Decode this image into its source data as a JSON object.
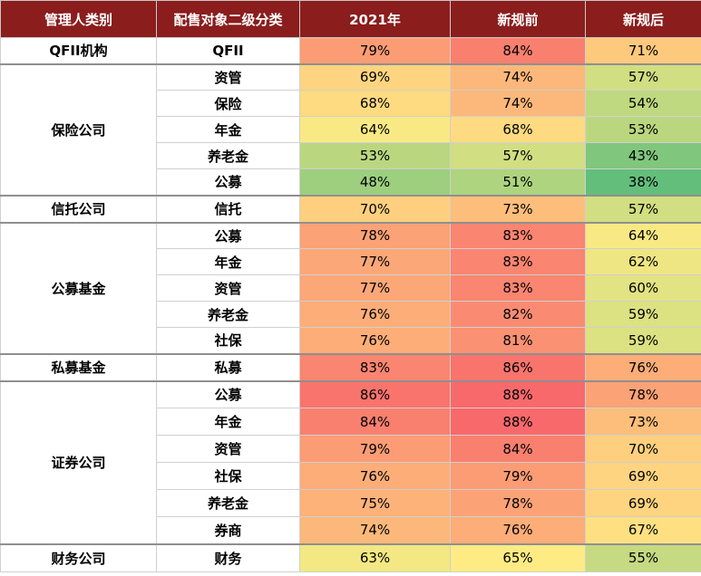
{
  "header": {
    "col1": "管理人类别",
    "col2": "配售对象二级分类",
    "col3": "2021年",
    "col4": "新规前",
    "col5": "新规后"
  },
  "groups": [
    {
      "category": "QFII机构",
      "rows": [
        {
          "sub": "QFII",
          "v2021": "79%",
          "before": "84%",
          "after": "71%"
        }
      ]
    },
    {
      "category": "保险公司",
      "rows": [
        {
          "sub": "资管",
          "v2021": "69%",
          "before": "74%",
          "after": "57%"
        },
        {
          "sub": "保险",
          "v2021": "68%",
          "before": "74%",
          "after": "54%"
        },
        {
          "sub": "年金",
          "v2021": "64%",
          "before": "68%",
          "after": "53%"
        },
        {
          "sub": "养老金",
          "v2021": "53%",
          "before": "57%",
          "after": "43%"
        },
        {
          "sub": "公募",
          "v2021": "48%",
          "before": "51%",
          "after": "38%"
        }
      ]
    },
    {
      "category": "信托公司",
      "rows": [
        {
          "sub": "信托",
          "v2021": "70%",
          "before": "73%",
          "after": "57%"
        }
      ]
    },
    {
      "category": "公募基金",
      "rows": [
        {
          "sub": "公募",
          "v2021": "78%",
          "before": "83%",
          "after": "64%"
        },
        {
          "sub": "年金",
          "v2021": "77%",
          "before": "83%",
          "after": "62%"
        },
        {
          "sub": "资管",
          "v2021": "77%",
          "before": "83%",
          "after": "60%"
        },
        {
          "sub": "养老金",
          "v2021": "76%",
          "before": "82%",
          "after": "59%"
        },
        {
          "sub": "社保",
          "v2021": "76%",
          "before": "81%",
          "after": "59%"
        }
      ]
    },
    {
      "category": "私募基金",
      "rows": [
        {
          "sub": "私募",
          "v2021": "83%",
          "before": "86%",
          "after": "76%"
        }
      ]
    },
    {
      "category": "证券公司",
      "rows": [
        {
          "sub": "公募",
          "v2021": "86%",
          "before": "88%",
          "after": "78%"
        },
        {
          "sub": "年金",
          "v2021": "84%",
          "before": "88%",
          "after": "73%"
        },
        {
          "sub": "资管",
          "v2021": "79%",
          "before": "84%",
          "after": "70%"
        },
        {
          "sub": "社保",
          "v2021": "76%",
          "before": "79%",
          "after": "69%"
        },
        {
          "sub": "养老金",
          "v2021": "75%",
          "before": "78%",
          "after": "69%"
        },
        {
          "sub": "券商",
          "v2021": "74%",
          "before": "76%",
          "after": "67%"
        }
      ]
    },
    {
      "category": "财务公司",
      "rows": [
        {
          "sub": "财务",
          "v2021": "63%",
          "before": "65%",
          "after": "55%"
        }
      ]
    }
  ],
  "colors": {
    "header_bg": "#8b1d1d",
    "scale_low": "#63be7b",
    "scale_mid": "#ffeb84",
    "scale_high": "#f8696b"
  }
}
